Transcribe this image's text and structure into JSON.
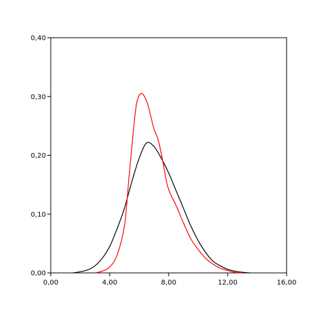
{
  "chart_data": {
    "type": "line",
    "title": "",
    "xlabel": "",
    "ylabel": "",
    "xlim": [
      0,
      16
    ],
    "ylim": [
      0,
      0.4
    ],
    "grid": false,
    "legend": "none",
    "x_ticks": [
      0,
      4,
      8,
      12,
      16
    ],
    "x_tick_labels": [
      "0,00",
      "4,00",
      "8,00",
      "12,00",
      "16,00"
    ],
    "y_ticks": [
      0,
      0.1,
      0.2,
      0.3,
      0.4
    ],
    "y_tick_labels": [
      "0,00",
      "0,10",
      "0,20",
      "0,30",
      "0,40"
    ],
    "series": [
      {
        "color": "#000000",
        "points": [
          [
            1.5,
            0.0
          ],
          [
            2.0,
            0.002
          ],
          [
            2.5,
            0.005
          ],
          [
            3.0,
            0.012
          ],
          [
            3.5,
            0.025
          ],
          [
            4.0,
            0.045
          ],
          [
            4.5,
            0.075
          ],
          [
            5.0,
            0.11
          ],
          [
            5.5,
            0.155
          ],
          [
            6.0,
            0.195
          ],
          [
            6.5,
            0.221
          ],
          [
            7.0,
            0.215
          ],
          [
            7.5,
            0.195
          ],
          [
            8.0,
            0.17
          ],
          [
            8.5,
            0.14
          ],
          [
            9.0,
            0.11
          ],
          [
            9.5,
            0.08
          ],
          [
            10.0,
            0.055
          ],
          [
            10.5,
            0.035
          ],
          [
            11.0,
            0.02
          ],
          [
            11.5,
            0.012
          ],
          [
            12.0,
            0.006
          ],
          [
            12.5,
            0.003
          ],
          [
            13.0,
            0.001
          ],
          [
            13.5,
            0.0
          ]
        ]
      },
      {
        "color": "#ff0000",
        "points": [
          [
            3.0,
            0.0
          ],
          [
            3.5,
            0.003
          ],
          [
            4.0,
            0.01
          ],
          [
            4.5,
            0.03
          ],
          [
            5.0,
            0.08
          ],
          [
            5.3,
            0.16
          ],
          [
            5.6,
            0.24
          ],
          [
            5.8,
            0.285
          ],
          [
            6.0,
            0.302
          ],
          [
            6.2,
            0.305
          ],
          [
            6.4,
            0.298
          ],
          [
            6.6,
            0.285
          ],
          [
            6.8,
            0.265
          ],
          [
            7.0,
            0.245
          ],
          [
            7.3,
            0.225
          ],
          [
            7.6,
            0.19
          ],
          [
            7.9,
            0.15
          ],
          [
            8.2,
            0.13
          ],
          [
            8.5,
            0.115
          ],
          [
            9.0,
            0.085
          ],
          [
            9.5,
            0.058
          ],
          [
            10.0,
            0.04
          ],
          [
            10.5,
            0.025
          ],
          [
            11.0,
            0.015
          ],
          [
            11.5,
            0.008
          ],
          [
            12.0,
            0.004
          ],
          [
            12.5,
            0.001
          ],
          [
            13.0,
            0.0
          ]
        ]
      }
    ]
  }
}
